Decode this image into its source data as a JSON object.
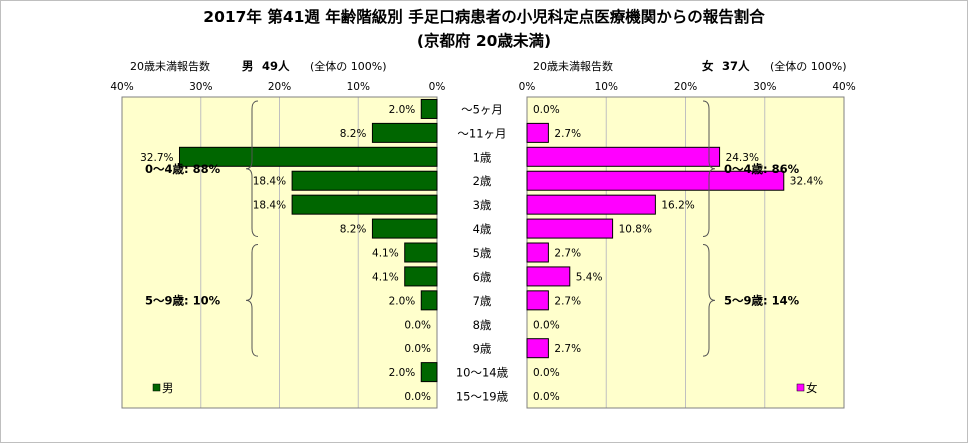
{
  "title_line1": "2017年 第41週 年齢階級別 手足口病患者の小児科定点医療機関からの報告割合",
  "title_line2": "(京都府 20歳未満)",
  "chart_data": {
    "type": "bar",
    "orientation": "horizontal",
    "layout": "population-pyramid",
    "categories": [
      "～5ヶ月",
      "～11ヶ月",
      "1歳",
      "2歳",
      "3歳",
      "4歳",
      "5歳",
      "6歳",
      "7歳",
      "8歳",
      "9歳",
      "10～14歳",
      "15～19歳"
    ],
    "value_format": "percent, 1 decimal",
    "xlim": [
      0,
      40
    ],
    "xticks": [
      "40%",
      "30%",
      "20%",
      "10%",
      "0%"
    ],
    "xticks_right": [
      "0%",
      "10%",
      "20%",
      "30%",
      "40%"
    ],
    "grid": "vertical gridlines at 10% intervals",
    "series": [
      {
        "name": "男",
        "side": "left",
        "header": {
          "caption": "20歳未満報告数",
          "sex": "男",
          "count": "49人",
          "note": "(全体の 100%)"
        },
        "color": "#006600",
        "plot_bg": "#FFFFCC",
        "values": [
          2.0,
          8.2,
          32.7,
          18.4,
          18.4,
          8.2,
          4.1,
          4.1,
          2.0,
          0.0,
          0.0,
          2.0,
          0.0
        ],
        "labels": [
          "2.0%",
          "8.2%",
          "32.7%",
          "18.4%",
          "18.4%",
          "8.2%",
          "4.1%",
          "4.1%",
          "2.0%",
          "0.0%",
          "0.0%",
          "2.0%",
          "0.0%"
        ],
        "brackets": [
          {
            "label": "0～4歳: 88%",
            "from": 0,
            "to": 5
          },
          {
            "label": "5～9歳: 10%",
            "from": 6,
            "to": 10
          }
        ],
        "legend": "男"
      },
      {
        "name": "女",
        "side": "right",
        "header": {
          "caption": "20歳未満報告数",
          "sex": "女",
          "count": "37人",
          "note": "(全体の 100%)"
        },
        "color": "#FF00FF",
        "plot_bg": "#FFFFCC",
        "values": [
          0.0,
          2.7,
          24.3,
          32.4,
          16.2,
          10.8,
          2.7,
          5.4,
          2.7,
          0.0,
          2.7,
          0.0,
          0.0
        ],
        "labels": [
          "0.0%",
          "2.7%",
          "24.3%",
          "32.4%",
          "16.2%",
          "10.8%",
          "2.7%",
          "5.4%",
          "2.7%",
          "0.0%",
          "2.7%",
          "0.0%",
          "0.0%"
        ],
        "brackets": [
          {
            "label": "0～4歳: 86%",
            "from": 0,
            "to": 5
          },
          {
            "label": "5～9歳: 14%",
            "from": 6,
            "to": 10
          }
        ],
        "legend": "女"
      }
    ]
  }
}
